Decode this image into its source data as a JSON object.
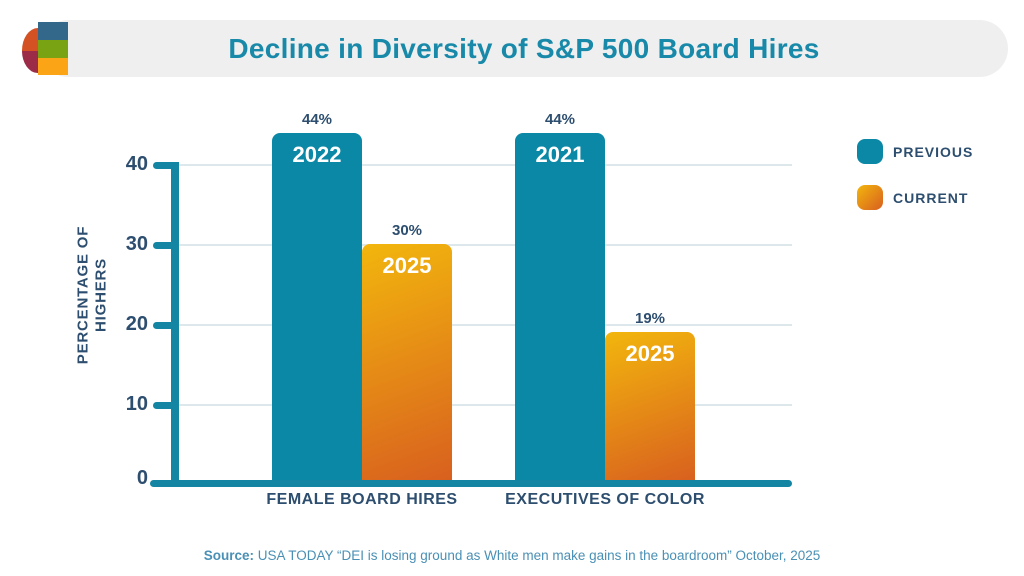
{
  "header": {
    "title": "Decline in Diversity of S&P 500 Board Hires"
  },
  "legend": {
    "items": [
      {
        "label": "PREVIOUS",
        "color": "#0a88a6"
      },
      {
        "label": "CURRENT",
        "color_top": "#f2b60d",
        "color_bottom": "#d85f1f"
      }
    ]
  },
  "chart_data": {
    "type": "bar",
    "title": "Decline in Diversity of S&P 500 Board Hires",
    "ylabel_lines": [
      "PERCENTAGE OF",
      "HIGHERS"
    ],
    "ylim": [
      0,
      45
    ],
    "yticks": [
      "0",
      "10",
      "20",
      "30",
      "40"
    ],
    "grid": true,
    "legend_position": "right",
    "groups": [
      {
        "category": "FEMALE BOARD HIRES",
        "bars": [
          {
            "series": "PREVIOUS",
            "year": "2022",
            "value": 44,
            "label": "44%"
          },
          {
            "series": "CURRENT",
            "year": "2025",
            "value": 30,
            "label": "30%"
          }
        ]
      },
      {
        "category": "EXECUTIVES OF COLOR",
        "bars": [
          {
            "series": "PREVIOUS",
            "year": "2021",
            "value": 44,
            "label": "44%"
          },
          {
            "series": "CURRENT",
            "year": "2025",
            "value": 19,
            "label": "19%"
          }
        ]
      }
    ]
  },
  "source": {
    "prefix": "Source:",
    "text": " USA TODAY “DEI is losing ground as White men make gains in the boardroom” October, 2025"
  },
  "colors": {
    "teal": "#0a88a6",
    "axis_teal": "#1486a4",
    "orange_top": "#f2b60d",
    "orange_bottom": "#d85f1f",
    "label_dark": "#2d4e6f",
    "title_teal": "#1889a9",
    "source_blue": "#4a90b5",
    "gridline": "#dde8ec",
    "header_bg": "#efefef",
    "logo_blue": "#34688a",
    "logo_green": "#7aa313",
    "logo_orange": "#fba416",
    "logo_red": "#d35122",
    "logo_maroon": "#9c2b47"
  }
}
